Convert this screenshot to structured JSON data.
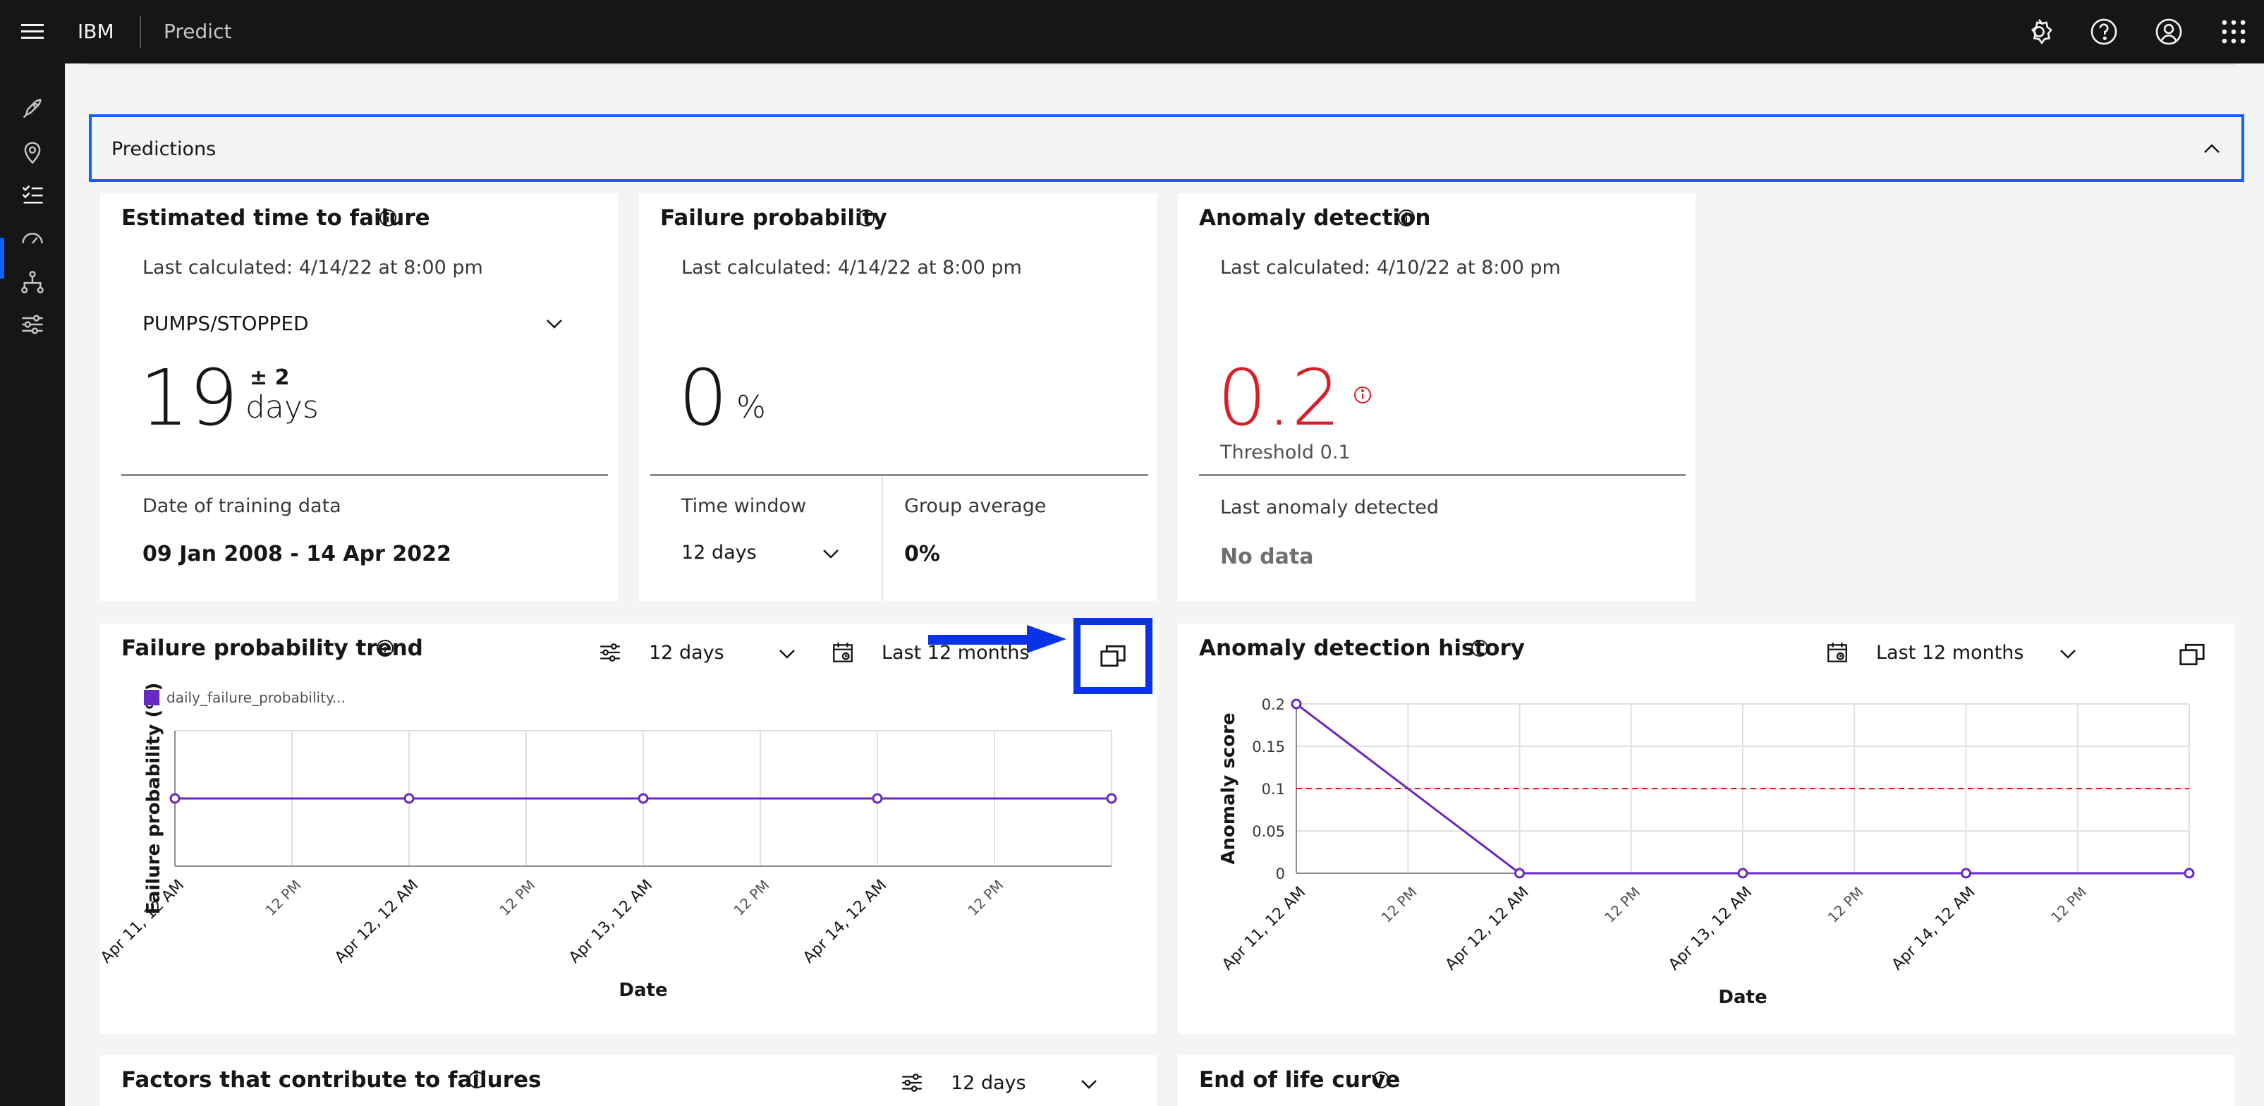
{
  "header": {
    "brand": "IBM",
    "product": "Predict"
  },
  "header_icons": [
    "settings-icon",
    "help-icon",
    "user-icon",
    "app-switcher-icon"
  ],
  "nav_icons": [
    "rocket-icon",
    "location-icon",
    "checklist-icon",
    "gauge-icon",
    "hierarchy-icon",
    "settings-adjust-icon"
  ],
  "accordion": {
    "title": "Predictions"
  },
  "ettf": {
    "title": "Estimated time to failure",
    "last_calculated": "Last calculated: 4/14/22 at 8:00 pm",
    "dropdown": "PUMPS/STOPPED",
    "value": "19",
    "plusminus": "± 2",
    "unit": "days",
    "training_label": "Date of training data",
    "training_value": "09 Jan 2008 - 14 Apr 2022"
  },
  "fp": {
    "title": "Failure probability",
    "last_calculated": "Last calculated: 4/14/22 at 8:00 pm",
    "value": "0",
    "unit": "%",
    "time_window_label": "Time window",
    "time_window_value": "12 days",
    "group_avg_label": "Group average",
    "group_avg_value": "0%"
  },
  "ad": {
    "title": "Anomaly detection",
    "last_calculated": "Last calculated: 4/10/22 at 8:00 pm",
    "value": "0.2",
    "threshold": "Threshold 0.1",
    "last_label": "Last anomaly detected",
    "last_value": "No data",
    "value_color": "#da1e28"
  },
  "fpt": {
    "title": "Failure probability trend",
    "window": "12 days",
    "range": "Last 12 months",
    "legend": "daily_failure_probability..."
  },
  "adh": {
    "title": "Anomaly detection history",
    "range": "Last 12 months"
  },
  "factors": {
    "title": "Factors that contribute to failures",
    "window": "12 days"
  },
  "eol": {
    "title": "End of life curve"
  },
  "colors": {
    "accent": "#0f62fe",
    "series": "#6929c4",
    "threshold": "#da1e28",
    "highlight": "#0a33e8"
  },
  "chart_data": [
    {
      "type": "line",
      "legend": [
        "daily_failure_probability..."
      ],
      "xlabel": "Date",
      "ylabel": "Failure probability (%)",
      "x_ticks": [
        "Apr 11, 12 AM",
        "12 PM",
        "Apr 12, 12 AM",
        "12 PM",
        "Apr 13, 12 AM",
        "12 PM",
        "Apr 14, 12 AM",
        "12 PM"
      ],
      "series": [
        {
          "name": "daily_failure_probability...",
          "x": [
            "Apr 11, 12 AM",
            "Apr 12, 12 AM",
            "Apr 13, 12 AM",
            "Apr 14, 12 AM",
            "Apr 15, 12 AM"
          ],
          "values": [
            0,
            0,
            0,
            0,
            0
          ]
        }
      ]
    },
    {
      "type": "line",
      "xlabel": "Date",
      "ylabel": "Anomaly score",
      "y_ticks": [
        "0.2",
        "0.15",
        "0.1",
        "0.05",
        "0"
      ],
      "ylim": [
        0,
        0.2
      ],
      "threshold": 0.1,
      "x_ticks": [
        "Apr 11, 12 AM",
        "12 PM",
        "Apr 12, 12 AM",
        "12 PM",
        "Apr 13, 12 AM",
        "12 PM",
        "Apr 14, 12 AM",
        "12 PM"
      ],
      "series": [
        {
          "x": [
            "Apr 11, 12 AM",
            "Apr 12, 12 AM",
            "Apr 13, 12 AM",
            "Apr 14, 12 AM",
            "Apr 15, 12 AM"
          ],
          "values": [
            0.2,
            0,
            0,
            0,
            0
          ]
        }
      ]
    }
  ]
}
